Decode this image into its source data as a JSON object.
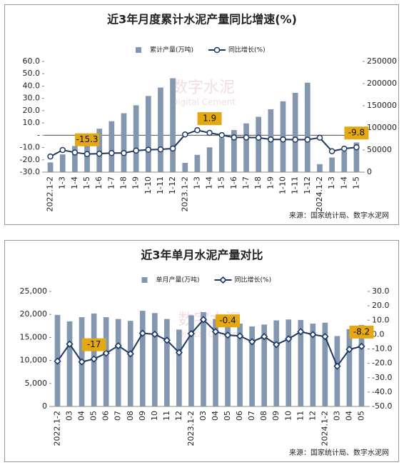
{
  "charts": [
    {
      "type": "combo",
      "title": "近3年月度累计水泥产量同比增速(%)",
      "categories": [
        "2022.1-2",
        "1-3",
        "1-4",
        "1-5",
        "1-6",
        "1-7",
        "1-8",
        "1-9",
        "1-10",
        "1-11",
        "1-12",
        "2023.1-2",
        "1-3",
        "1-4",
        "1-5",
        "1-6",
        "1-7",
        "1-8",
        "1-9",
        "1-10",
        "1-11",
        "1-12",
        "2024.1-2",
        "1-3",
        "1-4",
        "1-5"
      ],
      "series": [
        {
          "name": "累计产量(万吨)",
          "type": "bar",
          "axis": "y2",
          "color": "#8497b0",
          "values": [
            22000,
            40000,
            59000,
            78000,
            98000,
            115000,
            133000,
            151000,
            172000,
            191000,
            212000,
            21000,
            39000,
            56000,
            77000,
            95000,
            110000,
            125000,
            142000,
            160000,
            179000,
            202000,
            18000,
            33000,
            47000,
            67000
          ]
        },
        {
          "name": "同比增长(%)",
          "type": "line",
          "color": "#1f3864",
          "marker": "circle",
          "values": [
            -17.3,
            -12.0,
            -14.0,
            -15.3,
            -15.0,
            -14.5,
            -14.5,
            -12.5,
            -11.8,
            -11.5,
            -10.8,
            0.6,
            4.1,
            1.9,
            0.1,
            -1.8,
            -1.8,
            -2.0,
            -3.4,
            -3.4,
            -3.6,
            -3.6,
            -2.0,
            -13.0,
            -10.9,
            -9.8
          ],
          "value_labels": [
            null,
            null,
            null,
            "-15.3",
            null,
            null,
            null,
            null,
            null,
            null,
            null,
            null,
            null,
            "1.9",
            null,
            null,
            null,
            null,
            null,
            null,
            null,
            null,
            null,
            null,
            null,
            "-9.8"
          ]
        }
      ],
      "ylim": [
        -30,
        60
      ],
      "yticks": [
        {
          "value": -30,
          "label": "-30.0"
        },
        {
          "value": -20,
          "label": "-20.0"
        },
        {
          "value": -10,
          "label": "-10.0"
        },
        {
          "value": 0,
          "label": "-"
        },
        {
          "value": 10,
          "label": "10.0"
        },
        {
          "value": 20,
          "label": "20.0"
        },
        {
          "value": 30,
          "label": "30.0"
        },
        {
          "value": 40,
          "label": "40.0"
        },
        {
          "value": 50,
          "label": "50.0"
        },
        {
          "value": 60,
          "label": "60.0"
        }
      ],
      "y2lim": [
        0,
        250000
      ],
      "y2ticks": [
        0,
        50000,
        100000,
        150000,
        200000,
        250000
      ],
      "zero_line": true,
      "legend": "top",
      "watermark": [
        "数字水泥",
        "Digital Cement"
      ],
      "source": "来源：国家统计局、数字水泥网"
    },
    {
      "type": "combo",
      "title": "近3年单月水泥产量对比",
      "categories": [
        "2022.1-2",
        "03",
        "04",
        "05",
        "06",
        "07",
        "08",
        "09",
        "10",
        "11",
        "12",
        "2023.1-2",
        "03",
        "04",
        "05",
        "06",
        "07",
        "08",
        "09",
        "10",
        "11",
        "12",
        "2024.1-2",
        "03",
        "04",
        "05"
      ],
      "series": [
        {
          "name": "单月产量(万吨)",
          "type": "bar",
          "color": "#8497b0",
          "values": [
            19900,
            18500,
            19400,
            20200,
            19400,
            19000,
            18600,
            20800,
            20300,
            19000,
            16700,
            19800,
            20500,
            19000,
            19000,
            18000,
            17400,
            17800,
            18700,
            18900,
            18800,
            18000,
            18200,
            15300,
            16800,
            17700
          ]
        },
        {
          "name": "同比增长(%)",
          "type": "line",
          "axis": "y2",
          "color": "#1f3864",
          "marker": "diamond",
          "values": [
            -18.5,
            -6.6,
            -19.0,
            -17.0,
            -13.0,
            -7.8,
            -13.4,
            0.9,
            0.2,
            -4.0,
            -12.5,
            0.6,
            10.4,
            2.0,
            -0.4,
            -1.0,
            -5.0,
            -1.4,
            -7.0,
            -3.0,
            2.0,
            0.0,
            -1.4,
            -22.0,
            -10.3,
            -8.2
          ],
          "value_labels": [
            null,
            null,
            null,
            "-17",
            null,
            null,
            null,
            null,
            null,
            null,
            null,
            null,
            null,
            null,
            "-0.4",
            null,
            null,
            null,
            null,
            null,
            null,
            null,
            null,
            null,
            null,
            "-8.2"
          ]
        }
      ],
      "ylim": [
        0,
        25000
      ],
      "yticks": [
        0,
        {
          "value": 5000,
          "label": "5,000"
        },
        {
          "value": 10000,
          "label": "10,000"
        },
        {
          "value": 15000,
          "label": "15,000"
        },
        {
          "value": 20000,
          "label": "20,000"
        },
        {
          "value": 25000,
          "label": "25,000"
        }
      ],
      "y2lim": [
        -50,
        30
      ],
      "y2ticks": [
        {
          "value": -50,
          "label": "-50.0"
        },
        {
          "value": -40,
          "label": "-40.0"
        },
        {
          "value": -30,
          "label": "-30.0"
        },
        {
          "value": -20,
          "label": "-20.0"
        },
        {
          "value": -10,
          "label": "-10.0"
        },
        {
          "value": 0,
          "label": "0.0"
        },
        {
          "value": 10,
          "label": "10.0"
        },
        {
          "value": 20,
          "label": "20.0"
        },
        {
          "value": 30,
          "label": "30.0"
        }
      ],
      "zero_line": false,
      "legend": "top",
      "watermark": [
        "数字水泥",
        "Digital Cement"
      ],
      "source": "来源：国家统计局、数字水泥网"
    }
  ]
}
